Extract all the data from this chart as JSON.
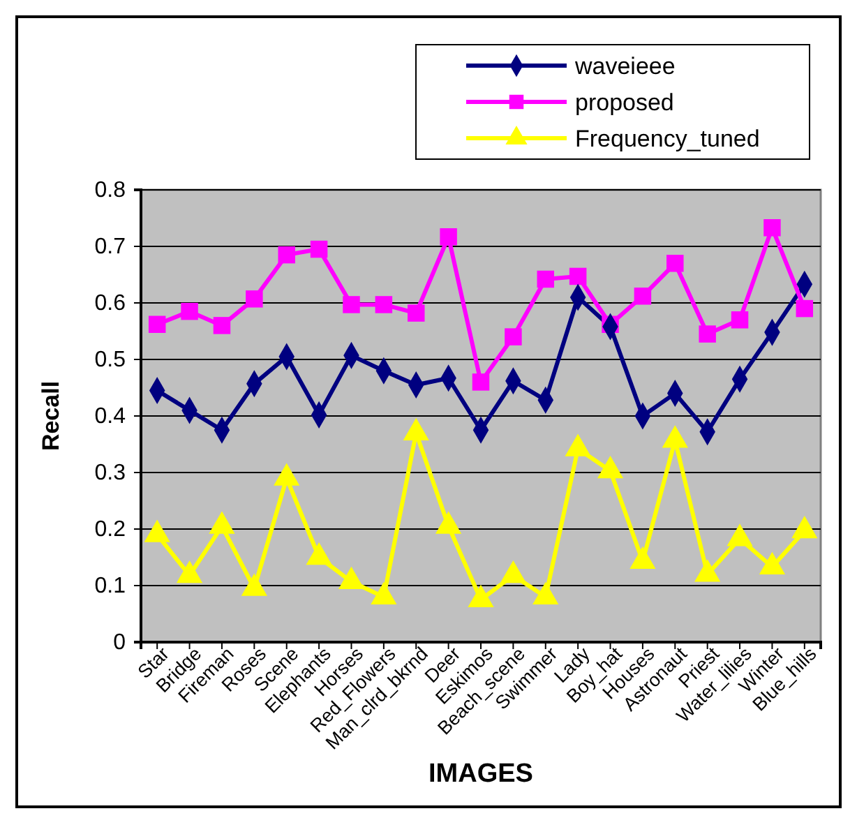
{
  "chart_data": {
    "type": "line",
    "xlabel": "IMAGES",
    "ylabel": "Recall",
    "categories": [
      "Star",
      "Bridge",
      "Fireman",
      "Roses",
      "Scene",
      "Elephants",
      "Horses",
      "Red_Flowers",
      "Man_clrd_bkrnd",
      "Deer",
      "Eskimos",
      "Beach_scene",
      "Swimmer",
      "Lady",
      "Boy_hat",
      "Houses",
      "Astronaut",
      "Priest",
      "Water_lilies",
      "Winter",
      "Blue_hills"
    ],
    "series": [
      {
        "name": "waveieee",
        "color": "#000080",
        "marker": "diamond",
        "values": [
          0.445,
          0.41,
          0.375,
          0.457,
          0.505,
          0.402,
          0.507,
          0.48,
          0.455,
          0.467,
          0.375,
          0.462,
          0.428,
          0.61,
          0.558,
          0.4,
          0.44,
          0.372,
          0.465,
          0.548,
          0.633
        ]
      },
      {
        "name": "proposed",
        "color": "#ff00ff",
        "marker": "square",
        "values": [
          0.562,
          0.585,
          0.56,
          0.607,
          0.685,
          0.695,
          0.597,
          0.597,
          0.582,
          0.717,
          0.46,
          0.54,
          0.642,
          0.647,
          0.562,
          0.612,
          0.67,
          0.545,
          0.57,
          0.733,
          0.59
        ]
      },
      {
        "name": "Frequency_tuned",
        "color": "#ffff00",
        "marker": "triangle",
        "values": [
          0.19,
          0.118,
          0.205,
          0.095,
          0.29,
          0.15,
          0.107,
          0.08,
          0.37,
          0.205,
          0.075,
          0.118,
          0.08,
          0.342,
          0.303,
          0.143,
          0.357,
          0.12,
          0.183,
          0.133,
          0.197
        ]
      }
    ],
    "ylim": [
      0,
      0.8
    ],
    "yticks": [
      0,
      {
        "value": 0.1,
        "label": "0.1"
      },
      {
        "value": 0.2,
        "label": "0.2"
      },
      {
        "value": 0.3,
        "label": "0.3"
      },
      {
        "value": 0.4,
        "label": "0.4"
      },
      {
        "value": 0.5,
        "label": "0.5"
      },
      {
        "value": 0.6,
        "label": "0.6"
      },
      {
        "value": 0.7,
        "label": "0.7"
      },
      {
        "value": 0.8,
        "label": "0.8"
      }
    ],
    "grid": "y",
    "legend": "top right"
  }
}
